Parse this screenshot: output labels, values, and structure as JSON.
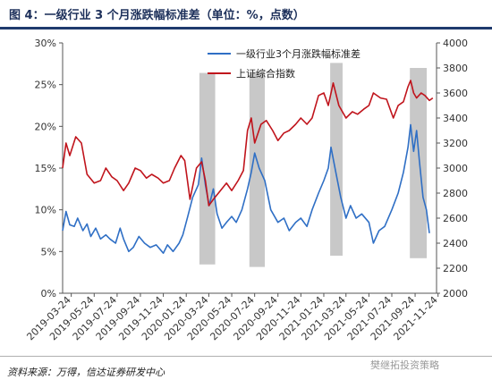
{
  "header": {
    "title": "图 4：一级行业 3 个月涨跌幅标准差（单位：%，点数）"
  },
  "footer": {
    "source": "资料来源：万得，信达证券研发中心",
    "watermark": "樊继拓投资策略"
  },
  "chart_data": {
    "type": "line",
    "title": "",
    "x_tick_labels": [
      "2019-03-24",
      "2019-05-24",
      "2019-07-24",
      "2019-09-24",
      "2019-11-24",
      "2020-01-24",
      "2020-03-24",
      "2020-05-24",
      "2020-07-24",
      "2020-09-24",
      "2020-11-24",
      "2021-01-24",
      "2021-03-24",
      "2021-05-24",
      "2021-07-24",
      "2021-09-24",
      "2021-11-24"
    ],
    "y_left": {
      "ticks": [
        "0%",
        "5%",
        "10%",
        "15%",
        "20%",
        "25%",
        "30%"
      ],
      "min": 0,
      "max": 30
    },
    "y_right": {
      "ticks": [
        "2000",
        "2200",
        "2400",
        "2600",
        "2800",
        "3000",
        "3200",
        "3400",
        "3600",
        "3800",
        "4000"
      ],
      "min": 2000,
      "max": 4000
    },
    "legend": [
      "一级行业3个月涨跌幅标准差",
      "上证综合指数"
    ],
    "shaded_ranges": [
      [
        "2020-02-28",
        "2020-04-10",
        2230,
        3760
      ],
      [
        "2020-07-10",
        "2020-08-20",
        2210,
        3770
      ],
      [
        "2021-02-10",
        "2021-03-15",
        2300,
        3840
      ],
      [
        "2021-09-10",
        "2021-10-25",
        2280,
        3800
      ]
    ],
    "series": [
      {
        "name": "一级行业3个月涨跌幅标准差",
        "axis": "left",
        "color": "#2f6fc5",
        "points": [
          [
            "2019-03-01",
            7.5
          ],
          [
            "2019-03-10",
            9.8
          ],
          [
            "2019-03-20",
            8.2
          ],
          [
            "2019-04-01",
            8.0
          ],
          [
            "2019-04-10",
            9.0
          ],
          [
            "2019-04-24",
            7.5
          ],
          [
            "2019-05-05",
            8.3
          ],
          [
            "2019-05-15",
            6.8
          ],
          [
            "2019-05-28",
            7.8
          ],
          [
            "2019-06-10",
            6.5
          ],
          [
            "2019-06-24",
            7.0
          ],
          [
            "2019-07-05",
            6.5
          ],
          [
            "2019-07-20",
            6.0
          ],
          [
            "2019-08-01",
            7.8
          ],
          [
            "2019-08-10",
            6.5
          ],
          [
            "2019-08-24",
            5.0
          ],
          [
            "2019-09-05",
            5.5
          ],
          [
            "2019-09-20",
            6.8
          ],
          [
            "2019-10-05",
            6.0
          ],
          [
            "2019-10-20",
            5.5
          ],
          [
            "2019-11-05",
            5.8
          ],
          [
            "2019-11-24",
            4.8
          ],
          [
            "2019-12-05",
            5.8
          ],
          [
            "2019-12-20",
            5.0
          ],
          [
            "2020-01-05",
            6.0
          ],
          [
            "2020-01-15",
            7.0
          ],
          [
            "2020-01-28",
            9.2
          ],
          [
            "2020-02-10",
            11.5
          ],
          [
            "2020-02-25",
            13.0
          ],
          [
            "2020-03-05",
            16.2
          ],
          [
            "2020-03-15",
            13.0
          ],
          [
            "2020-03-25",
            10.5
          ],
          [
            "2020-04-05",
            12.5
          ],
          [
            "2020-04-15",
            9.5
          ],
          [
            "2020-04-28",
            7.8
          ],
          [
            "2020-05-10",
            8.5
          ],
          [
            "2020-05-24",
            9.2
          ],
          [
            "2020-06-05",
            8.5
          ],
          [
            "2020-06-20",
            10.0
          ],
          [
            "2020-07-05",
            12.5
          ],
          [
            "2020-07-15",
            14.5
          ],
          [
            "2020-07-24",
            16.8
          ],
          [
            "2020-08-05",
            15.0
          ],
          [
            "2020-08-20",
            13.5
          ],
          [
            "2020-09-05",
            10.0
          ],
          [
            "2020-09-24",
            8.5
          ],
          [
            "2020-10-10",
            9.0
          ],
          [
            "2020-10-24",
            7.5
          ],
          [
            "2020-11-10",
            8.5
          ],
          [
            "2020-11-24",
            9.0
          ],
          [
            "2020-12-10",
            8.0
          ],
          [
            "2020-12-24",
            10.0
          ],
          [
            "2021-01-10",
            12.0
          ],
          [
            "2021-01-24",
            13.5
          ],
          [
            "2021-02-05",
            15.0
          ],
          [
            "2021-02-12",
            17.5
          ],
          [
            "2021-02-25",
            14.5
          ],
          [
            "2021-03-10",
            11.5
          ],
          [
            "2021-03-24",
            9.0
          ],
          [
            "2021-04-05",
            10.5
          ],
          [
            "2021-04-20",
            9.0
          ],
          [
            "2021-05-05",
            9.5
          ],
          [
            "2021-05-24",
            8.5
          ],
          [
            "2021-06-05",
            6.0
          ],
          [
            "2021-06-20",
            7.5
          ],
          [
            "2021-07-05",
            8.0
          ],
          [
            "2021-07-24",
            10.0
          ],
          [
            "2021-08-10",
            12.0
          ],
          [
            "2021-08-24",
            14.5
          ],
          [
            "2021-09-05",
            17.5
          ],
          [
            "2021-09-12",
            20.2
          ],
          [
            "2021-09-20",
            17.0
          ],
          [
            "2021-09-28",
            19.5
          ],
          [
            "2021-10-05",
            16.0
          ],
          [
            "2021-10-15",
            11.5
          ],
          [
            "2021-10-24",
            10.0
          ],
          [
            "2021-11-01",
            7.2
          ]
        ]
      },
      {
        "name": "上证综合指数",
        "axis": "right",
        "color": "#c0141c",
        "points": [
          [
            "2019-03-01",
            3000
          ],
          [
            "2019-03-10",
            3200
          ],
          [
            "2019-03-20",
            3100
          ],
          [
            "2019-04-05",
            3250
          ],
          [
            "2019-04-20",
            3200
          ],
          [
            "2019-05-05",
            2950
          ],
          [
            "2019-05-24",
            2880
          ],
          [
            "2019-06-10",
            2900
          ],
          [
            "2019-06-24",
            3000
          ],
          [
            "2019-07-10",
            2930
          ],
          [
            "2019-07-24",
            2900
          ],
          [
            "2019-08-10",
            2820
          ],
          [
            "2019-08-24",
            2880
          ],
          [
            "2019-09-10",
            3000
          ],
          [
            "2019-09-24",
            2980
          ],
          [
            "2019-10-10",
            2920
          ],
          [
            "2019-10-24",
            2950
          ],
          [
            "2019-11-10",
            2920
          ],
          [
            "2019-11-24",
            2880
          ],
          [
            "2019-12-10",
            2900
          ],
          [
            "2019-12-24",
            3000
          ],
          [
            "2020-01-10",
            3100
          ],
          [
            "2020-01-20",
            3060
          ],
          [
            "2020-02-03",
            2750
          ],
          [
            "2020-02-20",
            3000
          ],
          [
            "2020-03-05",
            3050
          ],
          [
            "2020-03-15",
            2900
          ],
          [
            "2020-03-24",
            2700
          ],
          [
            "2020-04-05",
            2750
          ],
          [
            "2020-04-24",
            2820
          ],
          [
            "2020-05-10",
            2880
          ],
          [
            "2020-05-24",
            2820
          ],
          [
            "2020-06-10",
            2900
          ],
          [
            "2020-06-24",
            2980
          ],
          [
            "2020-07-05",
            3300
          ],
          [
            "2020-07-15",
            3400
          ],
          [
            "2020-07-24",
            3200
          ],
          [
            "2020-08-10",
            3350
          ],
          [
            "2020-08-24",
            3380
          ],
          [
            "2020-09-10",
            3300
          ],
          [
            "2020-09-24",
            3220
          ],
          [
            "2020-10-10",
            3280
          ],
          [
            "2020-10-24",
            3300
          ],
          [
            "2020-11-10",
            3350
          ],
          [
            "2020-11-24",
            3400
          ],
          [
            "2020-12-10",
            3350
          ],
          [
            "2020-12-24",
            3400
          ],
          [
            "2021-01-10",
            3580
          ],
          [
            "2021-01-24",
            3600
          ],
          [
            "2021-02-05",
            3500
          ],
          [
            "2021-02-18",
            3680
          ],
          [
            "2021-03-05",
            3500
          ],
          [
            "2021-03-24",
            3400
          ],
          [
            "2021-04-10",
            3450
          ],
          [
            "2021-04-24",
            3430
          ],
          [
            "2021-05-10",
            3470
          ],
          [
            "2021-05-24",
            3500
          ],
          [
            "2021-06-05",
            3600
          ],
          [
            "2021-06-24",
            3560
          ],
          [
            "2021-07-10",
            3550
          ],
          [
            "2021-07-28",
            3400
          ],
          [
            "2021-08-10",
            3500
          ],
          [
            "2021-08-24",
            3530
          ],
          [
            "2021-09-05",
            3650
          ],
          [
            "2021-09-12",
            3700
          ],
          [
            "2021-09-20",
            3600
          ],
          [
            "2021-09-28",
            3560
          ],
          [
            "2021-10-10",
            3600
          ],
          [
            "2021-10-20",
            3580
          ],
          [
            "2021-11-01",
            3540
          ],
          [
            "2021-11-10",
            3560
          ]
        ]
      }
    ]
  }
}
